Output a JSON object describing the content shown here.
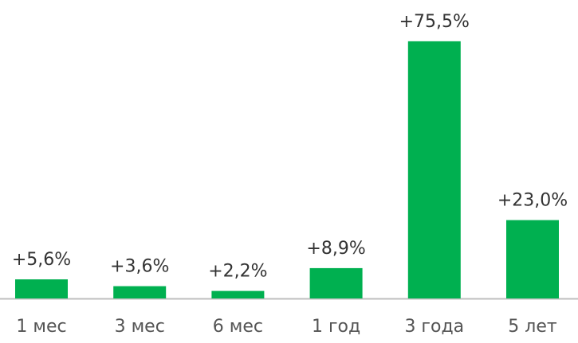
{
  "chart_data": {
    "type": "bar",
    "categories": [
      "1 мес",
      "3 мес",
      "6 мес",
      "1 год",
      "3 года",
      "5 лет"
    ],
    "values": [
      5.6,
      3.6,
      2.2,
      8.9,
      75.5,
      23.0
    ],
    "value_labels": [
      "+5,6%",
      "+3,6%",
      "+2,2%",
      "+8,9%",
      "+75,5%",
      "+23,0%"
    ],
    "color": "#00b050"
  }
}
